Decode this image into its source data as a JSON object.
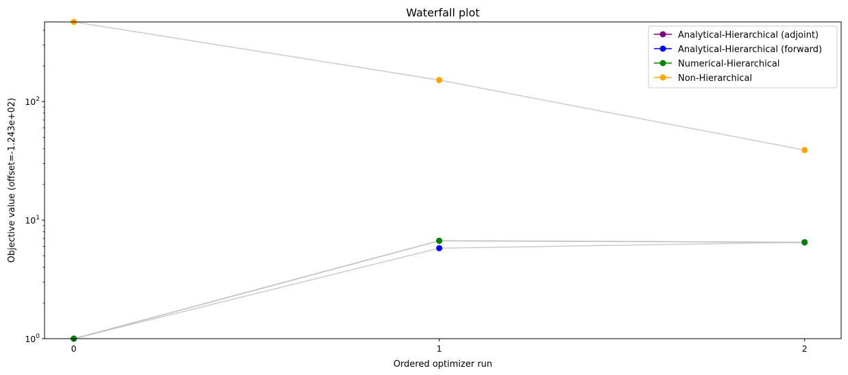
{
  "chart_data": {
    "type": "line",
    "title": "Waterfall plot",
    "xlabel": "Ordered optimizer run",
    "ylabel": "Objective value (offset=-1.243e+02)",
    "yscale": "log",
    "x": [
      0,
      1,
      2
    ],
    "xlim": [
      -0.08,
      2.1
    ],
    "ylim": [
      1,
      470
    ],
    "xticks": [
      "0",
      "1",
      "2"
    ],
    "yticks": [
      {
        "value": 1,
        "base": "10",
        "exp": "0"
      },
      {
        "value": 10,
        "base": "10",
        "exp": "1"
      },
      {
        "value": 100,
        "base": "10",
        "exp": "2"
      }
    ],
    "grid": false,
    "legend_position": "top-right",
    "line_color": "#bdbdbd",
    "series": [
      {
        "name": "Analytical-Hierarchical (adjoint)",
        "color": "#800080",
        "values": [
          1,
          6.7,
          6.5
        ]
      },
      {
        "name": "Analytical-Hierarchical (forward)",
        "color": "#0000ff",
        "values": [
          1,
          5.8,
          6.5
        ]
      },
      {
        "name": "Numerical-Hierarchical",
        "color": "#008000",
        "values": [
          1,
          6.7,
          6.5
        ]
      },
      {
        "name": "Non-Hierarchical",
        "color": "#ffa500",
        "values": [
          470,
          152,
          39
        ]
      }
    ]
  }
}
